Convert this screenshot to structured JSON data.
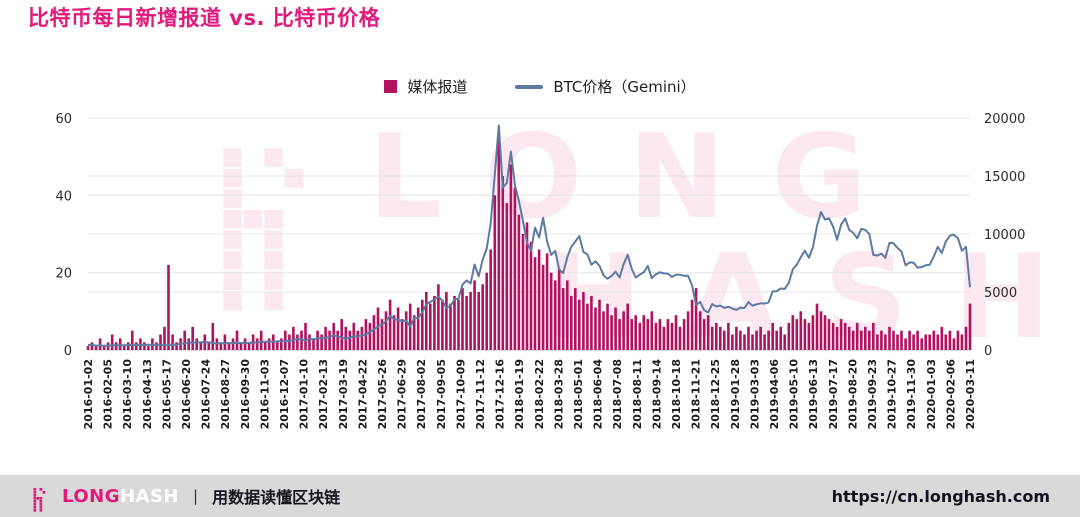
{
  "page": {
    "title": "比特币每日新增报道 vs. 比特币价格",
    "colors": {
      "accent": "#e2197b",
      "bars": "#b1125f",
      "line": "#5d7aa2",
      "grid": "#e6e6e6",
      "axis_text": "#2b2b2b",
      "watermark": "#ec74ab",
      "footer_bg": "#d9d9d9",
      "url_text": "#10131f"
    }
  },
  "legend": [
    {
      "label": "媒体报道",
      "marker": "square"
    },
    {
      "label": "BTC价格（Gemini）",
      "marker": "line"
    }
  ],
  "watermark": {
    "line1": "LONG",
    "line2": "HASH"
  },
  "footer": {
    "brand_long": "LONG",
    "brand_hash": "HASH",
    "separator": "|",
    "tagline": "用数据读懂区块链",
    "url": "https://cn.longhash.com"
  },
  "chart_data": {
    "type": "bar+line",
    "title": "比特币每日新增报道 vs. 比特币价格",
    "x_start": "2016-01-02",
    "x_end": "2020-03-11",
    "sample_interval_days": 7,
    "legend_position": "top",
    "grid": true,
    "x_tick_labels": [
      "2016-01-02",
      "2016-02-05",
      "2016-03-10",
      "2016-04-13",
      "2016-05-17",
      "2016-06-20",
      "2016-07-24",
      "2016-08-27",
      "2016-09-30",
      "2016-11-03",
      "2016-12-07",
      "2017-01-10",
      "2017-02-13",
      "2017-03-19",
      "2017-04-22",
      "2017-05-26",
      "2017-06-29",
      "2017-08-02",
      "2017-09-05",
      "2017-10-09",
      "2017-11-12",
      "2017-12-16",
      "2018-01-19",
      "2018-02-22",
      "2018-03-28",
      "2018-05-01",
      "2018-06-04",
      "2018-07-08",
      "2018-08-11",
      "2018-09-14",
      "2018-10-18",
      "2018-11-21",
      "2018-12-25",
      "2019-01-28",
      "2019-03-03",
      "2019-04-06",
      "2019-05-10",
      "2019-06-13",
      "2019-07-17",
      "2019-08-20",
      "2019-09-23",
      "2019-10-27",
      "2019-11-30",
      "2020-01-03",
      "2020-02-06",
      "2020-03-11"
    ],
    "left_axis": {
      "ticks": [
        0,
        20,
        40,
        60
      ],
      "max": 60,
      "series": "媒体报道"
    },
    "right_axis": {
      "ticks": [
        0,
        5000,
        10000,
        15000,
        20000
      ],
      "max": 20000,
      "series": "BTC价格（Gemini）"
    },
    "series": [
      {
        "name": "媒体报道",
        "type": "bar",
        "axis": "left",
        "values": [
          1,
          2,
          1,
          3,
          1,
          2,
          4,
          2,
          3,
          1,
          2,
          5,
          2,
          3,
          2,
          1,
          3,
          2,
          4,
          6,
          22,
          4,
          2,
          3,
          5,
          3,
          6,
          3,
          2,
          4,
          2,
          7,
          3,
          2,
          4,
          2,
          3,
          5,
          2,
          3,
          2,
          4,
          3,
          5,
          2,
          3,
          4,
          2,
          3,
          5,
          4,
          6,
          4,
          5,
          7,
          4,
          3,
          5,
          4,
          6,
          5,
          7,
          5,
          8,
          6,
          5,
          7,
          5,
          6,
          8,
          7,
          9,
          11,
          8,
          10,
          13,
          9,
          11,
          8,
          10,
          12,
          9,
          11,
          13,
          15,
          12,
          14,
          17,
          13,
          15,
          12,
          14,
          13,
          16,
          14,
          15,
          18,
          15,
          17,
          20,
          26,
          40,
          57,
          45,
          38,
          48,
          42,
          35,
          30,
          33,
          28,
          24,
          26,
          22,
          25,
          20,
          18,
          21,
          16,
          18,
          14,
          16,
          13,
          15,
          12,
          14,
          11,
          13,
          10,
          12,
          9,
          11,
          8,
          10,
          12,
          8,
          9,
          7,
          9,
          8,
          10,
          7,
          8,
          6,
          8,
          7,
          9,
          6,
          8,
          10,
          13,
          16,
          10,
          8,
          9,
          6,
          7,
          6,
          5,
          7,
          4,
          6,
          5,
          4,
          6,
          4,
          5,
          6,
          4,
          5,
          7,
          5,
          6,
          4,
          7,
          9,
          8,
          10,
          8,
          7,
          9,
          12,
          10,
          9,
          8,
          7,
          6,
          8,
          7,
          6,
          5,
          7,
          5,
          6,
          5,
          7,
          4,
          5,
          4,
          6,
          5,
          4,
          5,
          3,
          5,
          4,
          5,
          3,
          4,
          4,
          5,
          4,
          6,
          4,
          5,
          3,
          5,
          4,
          6,
          12
        ]
      },
      {
        "name": "BTC价格（Gemini）",
        "type": "line",
        "axis": "right",
        "values": [
          434,
          431,
          387,
          378,
          373,
          382,
          394,
          407,
          398,
          416,
          420,
          415,
          418,
          428,
          431,
          447,
          455,
          449,
          454,
          452,
          443,
          444,
          457,
          526,
          577,
          672,
          625,
          655,
          663,
          677,
          655,
          585,
          572,
          575,
          580,
          574,
          602,
          609,
          606,
          611,
          616,
          635,
          655,
          700,
          709,
          717,
          737,
          745,
          755,
          770,
          790,
          875,
          952,
          900,
          820,
          920,
          920,
          1010,
          1000,
          1050,
          1150,
          1260,
          1180,
          1070,
          970,
          1090,
          1180,
          1175,
          1245,
          1340,
          1550,
          1760,
          2040,
          2190,
          2480,
          2950,
          2650,
          2590,
          2490,
          2550,
          1990,
          2780,
          2740,
          3250,
          3950,
          4150,
          4350,
          4600,
          4250,
          3630,
          3790,
          4350,
          4430,
          5640,
          6000,
          5730,
          7370,
          6350,
          7790,
          8750,
          10900,
          15150,
          19350,
          14000,
          14400,
          17100,
          14200,
          12850,
          11100,
          9250,
          8550,
          10550,
          9700,
          11400,
          9350,
          8200,
          8550,
          6930,
          6630,
          8000,
          8900,
          9350,
          9830,
          8450,
          8250,
          7360,
          7650,
          7250,
          6450,
          6150,
          6400,
          6750,
          6250,
          7400,
          8200,
          7000,
          6250,
          6500,
          6700,
          7250,
          6200,
          6530,
          6700,
          6600,
          6580,
          6300,
          6490,
          6480,
          6400,
          6400,
          5550,
          3880,
          4150,
          3420,
          3230,
          3960,
          3750,
          3830,
          3630,
          3720,
          3580,
          3460,
          3650,
          3620,
          4130,
          3820,
          3940,
          4030,
          4000,
          4100,
          5050,
          5070,
          5300,
          5260,
          5800,
          6950,
          7350,
          8000,
          8560,
          7950,
          8850,
          10700,
          11900,
          11250,
          11350,
          10650,
          9500,
          10800,
          11350,
          10350,
          10100,
          9630,
          10450,
          10350,
          10000,
          8200,
          8150,
          8300,
          7950,
          9250,
          9200,
          8800,
          8480,
          7300,
          7550,
          7520,
          7100,
          7150,
          7300,
          7350,
          8050,
          8900,
          8350,
          9350,
          9850,
          9950,
          9650,
          8550,
          8900,
          5400
        ]
      }
    ]
  }
}
